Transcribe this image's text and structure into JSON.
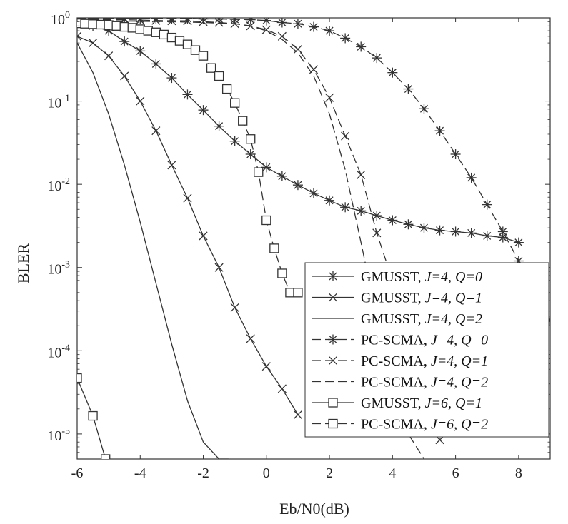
{
  "chart_data": {
    "type": "line",
    "xlabel": "Eb/N0(dB)",
    "ylabel": "BLER",
    "xlim": [
      -6,
      9
    ],
    "ylim": [
      5e-06,
      1
    ],
    "yscale": "log",
    "grid": false,
    "legend_position": "bottom-right",
    "x_ticks": [
      "-6",
      "-4",
      "-2",
      "0",
      "2",
      "4",
      "6",
      "8"
    ],
    "y_ticks": [
      {
        "base": "10",
        "exp": "0"
      },
      {
        "base": "10",
        "exp": "-1"
      },
      {
        "base": "10",
        "exp": "-2"
      },
      {
        "base": "10",
        "exp": "-3"
      },
      {
        "base": "10",
        "exp": "-4"
      },
      {
        "base": "10",
        "exp": "-5"
      }
    ],
    "series": [
      {
        "name": "GMUSST, J=4, Q=0",
        "legend": {
          "prefix": "GMUSST, ",
          "italic": "J=4, Q=0"
        },
        "marker": "asterisk",
        "line": "solid",
        "color": "#333333",
        "x": [
          -6,
          -5.5,
          -5,
          -4.5,
          -4,
          -3.5,
          -3,
          -2.5,
          -2,
          -1.5,
          -1,
          -0.5,
          0,
          0.5,
          1,
          1.5,
          2,
          2.5,
          3,
          3.5,
          4,
          4.5,
          5,
          5.5,
          6,
          6.5,
          7,
          7.5,
          8
        ],
        "y": [
          0.9,
          0.8,
          0.7,
          0.52,
          0.4,
          0.28,
          0.19,
          0.12,
          0.078,
          0.05,
          0.033,
          0.023,
          0.016,
          0.0125,
          0.0098,
          0.0078,
          0.0064,
          0.0053,
          0.0048,
          0.0042,
          0.0037,
          0.0033,
          0.003,
          0.0028,
          0.0027,
          0.0026,
          0.0024,
          0.0023,
          0.002
        ]
      },
      {
        "name": "GMUSST, J=4, Q=1",
        "legend": {
          "prefix": "GMUSST, ",
          "italic": "J=4, Q=1"
        },
        "marker": "x",
        "line": "solid",
        "color": "#333333",
        "x": [
          -6,
          -5.5,
          -5,
          -4.5,
          -4,
          -3.5,
          -3,
          -2.5,
          -2,
          -1.5,
          -1,
          -0.5,
          0,
          0.5,
          1
        ],
        "y": [
          0.6,
          0.5,
          0.35,
          0.2,
          0.1,
          0.044,
          0.017,
          0.0068,
          0.0024,
          0.001,
          0.00033,
          0.00014,
          6.5e-05,
          3.5e-05,
          1.7e-05
        ]
      },
      {
        "name": "GMUSST, J=4,  Q=2",
        "legend": {
          "prefix": "GMUSST, ",
          "italic": "J=4,  Q=2"
        },
        "marker": "none",
        "line": "solid",
        "color": "#333333",
        "x": [
          -6,
          -5.5,
          -5,
          -4.5,
          -4,
          -3.5,
          -3,
          -2.5,
          -2,
          -1.5,
          -1.2
        ],
        "y": [
          0.5,
          0.22,
          0.07,
          0.017,
          0.0035,
          0.00065,
          0.00012,
          2.5e-05,
          8e-06,
          5e-06,
          5e-06
        ]
      },
      {
        "name": "PC-SCMA, J=4, Q=0",
        "legend": {
          "prefix": "PC-SCMA, ",
          "italic": "J=4, Q=0"
        },
        "marker": "asterisk",
        "line": "dashed",
        "color": "#333333",
        "x": [
          -6,
          -5.5,
          -5,
          -4.5,
          -4,
          -3.5,
          -3,
          -2.5,
          -2,
          -1.5,
          -1,
          -0.5,
          0,
          0.5,
          1,
          1.5,
          2,
          2.5,
          3,
          3.5,
          4,
          4.5,
          5,
          5.5,
          6,
          6.5,
          7,
          7.5,
          8,
          8.5,
          9
        ],
        "y": [
          0.98,
          0.98,
          0.98,
          0.98,
          0.98,
          0.98,
          0.98,
          0.98,
          0.97,
          0.97,
          0.96,
          0.95,
          0.93,
          0.88,
          0.85,
          0.78,
          0.7,
          0.57,
          0.45,
          0.33,
          0.22,
          0.14,
          0.081,
          0.044,
          0.023,
          0.012,
          0.0057,
          0.0027,
          0.0012,
          0.00053,
          0.00023
        ]
      },
      {
        "name": "PC-SCMA, J=4, Q=1",
        "legend": {
          "prefix": "PC-SCMA, ",
          "italic": "J=4, Q=1"
        },
        "marker": "x",
        "line": "dashed",
        "color": "#333333",
        "x": [
          -6,
          -5.5,
          -5,
          -4.5,
          -4,
          -3.5,
          -3,
          -2.5,
          -2,
          -1.5,
          -1,
          -0.5,
          0,
          0.5,
          1,
          1.5,
          2,
          2.5,
          3,
          3.5,
          4,
          4.5,
          5,
          5.5
        ],
        "y": [
          0.95,
          0.95,
          0.95,
          0.95,
          0.94,
          0.93,
          0.92,
          0.92,
          0.9,
          0.88,
          0.85,
          0.8,
          0.72,
          0.6,
          0.42,
          0.24,
          0.11,
          0.038,
          0.013,
          0.0026,
          0.0007,
          0.00012,
          3e-05,
          8.5e-06
        ]
      },
      {
        "name": "PC-SCMA, J=4, Q=2",
        "legend": {
          "prefix": "PC-SCMA, ",
          "italic": "J=4, Q=2"
        },
        "marker": "none",
        "line": "dashed",
        "color": "#333333",
        "x": [
          -6,
          -5,
          -4,
          -3,
          -2,
          -1,
          -0.5,
          0,
          0.5,
          1,
          1.5,
          2,
          2.5,
          3,
          3.5,
          4,
          4.5,
          5
        ],
        "y": [
          0.92,
          0.92,
          0.91,
          0.9,
          0.88,
          0.85,
          0.8,
          0.7,
          0.55,
          0.38,
          0.2,
          0.07,
          0.015,
          0.002,
          0.00025,
          3e-05,
          1e-05,
          5e-06
        ]
      },
      {
        "name": "GMUSST, J=6, Q=1",
        "legend": {
          "prefix": "GMUSST, ",
          "italic": "J=6, Q=1"
        },
        "marker": "square",
        "line": "solid",
        "color": "#333333",
        "x": [
          -6,
          -5.5,
          -5.1
        ],
        "y": [
          4.7e-05,
          1.65e-05,
          5e-06
        ]
      },
      {
        "name": "PC-SCMA, J=6, Q=2",
        "legend": {
          "prefix": "PC-SCMA, ",
          "italic": "J=6, Q=2"
        },
        "marker": "square",
        "line": "dashed",
        "color": "#333333",
        "x": [
          -6,
          -5.75,
          -5.5,
          -5.25,
          -5,
          -4.75,
          -4.5,
          -4.25,
          -4,
          -3.75,
          -3.5,
          -3.25,
          -3,
          -2.75,
          -2.5,
          -2.25,
          -2,
          -1.75,
          -1.5,
          -1.25,
          -1,
          -0.75,
          -0.5,
          -0.25,
          0,
          0.25,
          0.5,
          0.75,
          1
        ],
        "y": [
          0.86,
          0.85,
          0.84,
          0.83,
          0.82,
          0.8,
          0.78,
          0.76,
          0.73,
          0.7,
          0.67,
          0.63,
          0.58,
          0.53,
          0.48,
          0.41,
          0.35,
          0.25,
          0.2,
          0.14,
          0.095,
          0.058,
          0.035,
          0.014,
          0.0037,
          0.0017,
          0.00085,
          0.0005,
          0.0005
        ]
      }
    ]
  }
}
